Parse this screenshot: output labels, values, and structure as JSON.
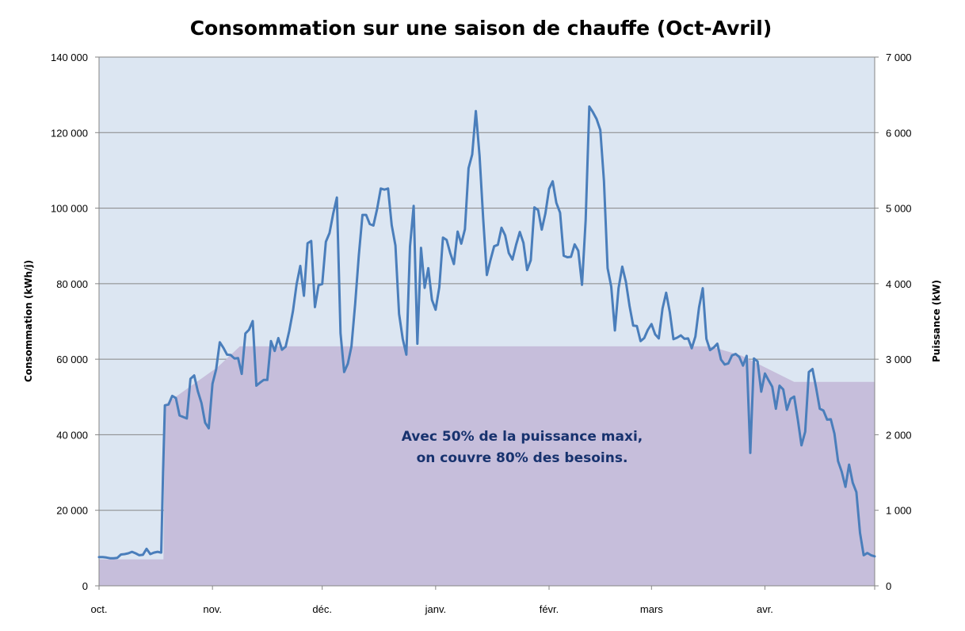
{
  "chart_data": {
    "type": "line",
    "title": "Consommation sur une saison de chauffe (Oct-Avril)",
    "ylabel": "Consommation (kWh/j)",
    "y2label": "Puissance (kW)",
    "ylim": [
      0,
      140000
    ],
    "y2lim": [
      0,
      7000
    ],
    "yticks": [
      "0",
      "20 000",
      "40 000",
      "60 000",
      "80 000",
      "100 000",
      "120 000",
      "140 000"
    ],
    "y2ticks": [
      "0",
      "1 000",
      "2 000",
      "3 000",
      "4 000",
      "5 000",
      "6 000",
      "7 000"
    ],
    "xticks": [
      "oct.",
      "nov.",
      "déc.",
      "janv.",
      "févr.",
      "mars",
      "avr."
    ],
    "xtick_days": [
      0,
      31,
      61,
      92,
      123,
      151,
      182
    ],
    "xlim_days": [
      0,
      212
    ],
    "annotation": [
      "Avec 50% de la puissance maxi,",
      "on couvre 80% des  besoins."
    ],
    "area_series": {
      "name": "Puissance",
      "axis": "right",
      "points": [
        [
          0,
          350
        ],
        [
          17.6,
          350
        ],
        [
          18.0,
          2400
        ],
        [
          32.5,
          2900
        ],
        [
          38.5,
          3170
        ],
        [
          167.0,
          3170
        ],
        [
          175.5,
          3050
        ],
        [
          190.0,
          2700
        ],
        [
          212,
          2700
        ]
      ]
    },
    "series": [
      {
        "axis": "left",
        "color": "#4a7ebb",
        "x": [
          0,
          1,
          2,
          3,
          4,
          5,
          6,
          7,
          8,
          9,
          10,
          11,
          12,
          13,
          14,
          15,
          16,
          17,
          17.5,
          18,
          19,
          20,
          21,
          22,
          23,
          24,
          25,
          26,
          27,
          28,
          29,
          30,
          31,
          32,
          33,
          34,
          35,
          36,
          37,
          38,
          39,
          40,
          41,
          42,
          43,
          44,
          45,
          46,
          47,
          48,
          49,
          50,
          51,
          52,
          53,
          54,
          55,
          56,
          57,
          58,
          59,
          60,
          61,
          62,
          63,
          64,
          65,
          66,
          67,
          68,
          69,
          70,
          71,
          72,
          73,
          74,
          75,
          76,
          77,
          78,
          79,
          80,
          81,
          82,
          83,
          84,
          85,
          86,
          87,
          88,
          89,
          90,
          91,
          92,
          93,
          94,
          95,
          96,
          97,
          98,
          99,
          100,
          101,
          102,
          103,
          104,
          105,
          106,
          107,
          108,
          109,
          110,
          111,
          112,
          113,
          114,
          115,
          116,
          117,
          118,
          119,
          120,
          121,
          122,
          123,
          124,
          125,
          126,
          127,
          128,
          129,
          130,
          131,
          132,
          133,
          134,
          135,
          136,
          137,
          138,
          139,
          140,
          141,
          142,
          143,
          144,
          145,
          146,
          147,
          148,
          149,
          150,
          151,
          152,
          153,
          154,
          155,
          156,
          157,
          158,
          159,
          160,
          161,
          162,
          163,
          164,
          165,
          166,
          167,
          168,
          169,
          170,
          171,
          172,
          173,
          174,
          175,
          176,
          177,
          178,
          179,
          180,
          181,
          182,
          183,
          184,
          185,
          186,
          187,
          188,
          189,
          190,
          191,
          192,
          193,
          194,
          195,
          196,
          197,
          198,
          199,
          200,
          201,
          202,
          203,
          204,
          205,
          206,
          207,
          208,
          209,
          210,
          211,
          212
        ],
        "values": [
          7600,
          7600,
          7500,
          7300,
          7300,
          7400,
          8300,
          8400,
          8600,
          9000,
          8600,
          8100,
          8200,
          9800,
          8400,
          8800,
          9000,
          8800,
          30000,
          47800,
          48000,
          50300,
          49700,
          45100,
          44700,
          44300,
          54800,
          55700,
          51500,
          48400,
          43200,
          41700,
          53500,
          57300,
          64500,
          63000,
          61200,
          61100,
          60200,
          60300,
          56100,
          66800,
          67800,
          70100,
          53000,
          53800,
          54500,
          54500,
          64800,
          62200,
          65600,
          62500,
          63300,
          67500,
          72800,
          79900,
          84700,
          76800,
          90700,
          91300,
          73800,
          79600,
          79900,
          91100,
          93400,
          98500,
          102800,
          66900,
          56600,
          58800,
          63400,
          74700,
          87500,
          98200,
          98200,
          95800,
          95400,
          99800,
          105200,
          104900,
          105200,
          95500,
          90100,
          72000,
          65400,
          61200,
          89900,
          100600,
          64100,
          89500,
          78900,
          84100,
          75700,
          73100,
          79100,
          92200,
          91600,
          88100,
          85200,
          93800,
          90600,
          94400,
          110600,
          114200,
          125700,
          113800,
          97100,
          82300,
          86300,
          89900,
          90300,
          94800,
          92800,
          88100,
          86400,
          90300,
          93700,
          90800,
          83600,
          86200,
          100200,
          99500,
          94300,
          98600,
          105100,
          107100,
          101400,
          98800,
          87400,
          87000,
          87100,
          90400,
          88700,
          79700,
          96800,
          126900,
          125400,
          123600,
          120700,
          107200,
          84100,
          79200,
          67600,
          78800,
          84500,
          80500,
          74100,
          68900,
          68800,
          64800,
          65600,
          67800,
          69300,
          66600,
          65500,
          73400,
          77600,
          72500,
          65300,
          65700,
          66300,
          65400,
          65500,
          62900,
          66000,
          73700,
          78800,
          65400,
          62400,
          63100,
          64100,
          59900,
          58600,
          58900,
          61000,
          61400,
          60600,
          58300,
          60900,
          35200,
          60200,
          59400,
          51400,
          56200,
          54400,
          52700,
          46900,
          53000,
          52000,
          46600,
          49500,
          50100,
          44000,
          37200,
          40800,
          56600,
          57400,
          52400,
          46900,
          46400,
          44000,
          44100,
          40300,
          33000,
          30200,
          26200,
          32100,
          27300,
          24800,
          14000,
          8100,
          8700,
          8100,
          7800
        ]
      }
    ]
  }
}
